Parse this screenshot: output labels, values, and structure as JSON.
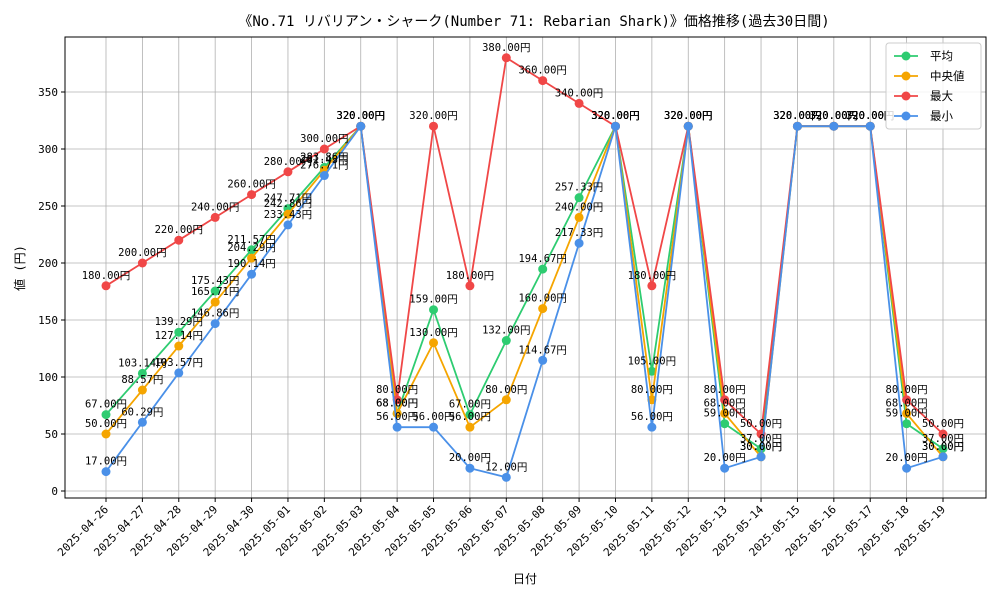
{
  "chart_data": {
    "type": "line",
    "title": "《No.71 リバリアン・シャーク(Number 71: Rebarian Shark)》価格推移(過去30日間)",
    "xlabel": "日付",
    "ylabel": "値 (円)",
    "ylim": [
      0,
      395
    ],
    "yticks": [
      0,
      50,
      100,
      150,
      200,
      250,
      300,
      350
    ],
    "grid": true,
    "legend_position": "top-right",
    "label_suffix": "円",
    "x": [
      "2025-04-26",
      "2025-04-27",
      "2025-04-28",
      "2025-04-29",
      "2025-04-30",
      "2025-05-01",
      "2025-05-02",
      "2025-05-03",
      "2025-05-04",
      "2025-05-05",
      "2025-05-06",
      "2025-05-07",
      "2025-05-08",
      "2025-05-09",
      "2025-05-10",
      "2025-05-11",
      "2025-05-12",
      "2025-05-13",
      "2025-05-14",
      "2025-05-15",
      "2025-05-16",
      "2025-05-17",
      "2025-05-18",
      "2025-05-19"
    ],
    "series": [
      {
        "name": "平均",
        "color": "#2ecc71",
        "values": [
          67,
          103.14,
          139.29,
          175.43,
          211.57,
          247.71,
          283.86,
          320,
          68,
          159,
          67,
          132,
          194.67,
          257.33,
          320,
          105,
          320,
          59,
          37,
          320,
          320,
          320,
          59,
          37
        ]
      },
      {
        "name": "中央値",
        "color": "#f5a500",
        "values": [
          50,
          88.57,
          127.14,
          165.71,
          204.29,
          242.86,
          281.43,
          320,
          68,
          130,
          56,
          80,
          160,
          240,
          320,
          80,
          320,
          68,
          30,
          320,
          320,
          320,
          68,
          30
        ]
      },
      {
        "name": "最大",
        "color": "#f04747",
        "values": [
          180,
          200,
          220,
          240,
          260,
          280,
          300,
          320,
          80,
          320,
          180,
          380,
          360,
          340,
          320,
          180,
          320,
          80,
          50,
          320,
          320,
          320,
          80,
          50
        ]
      },
      {
        "name": "最小",
        "color": "#4a90e8",
        "values": [
          17,
          60.29,
          103.57,
          146.86,
          190.14,
          233.43,
          276.71,
          320,
          56,
          56,
          20,
          12,
          114.67,
          217.33,
          320,
          56,
          320,
          20,
          30,
          320,
          320,
          320,
          20,
          30
        ]
      }
    ]
  }
}
